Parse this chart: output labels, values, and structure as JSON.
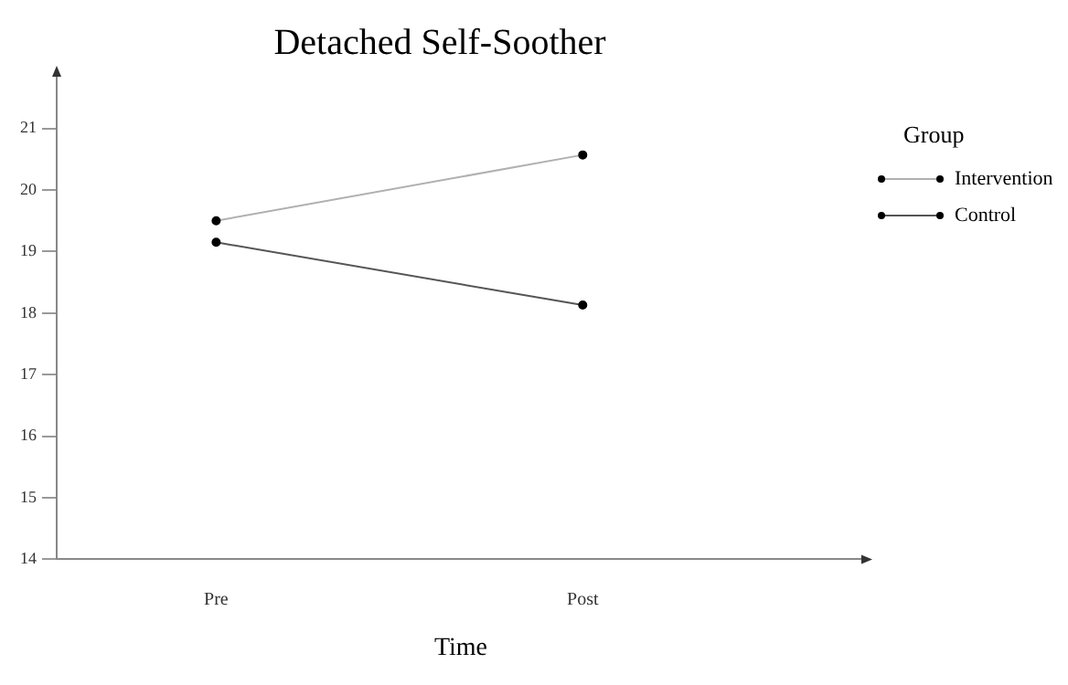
{
  "chart_data": {
    "type": "line",
    "title": "Detached Self-Soother",
    "xlabel": "Time",
    "legend_title": "Group",
    "categories": [
      "Pre",
      "Post"
    ],
    "series": [
      {
        "name": "Intervention",
        "color": "#b0b0b0",
        "values": [
          19.5,
          20.57
        ]
      },
      {
        "name": "Control",
        "color": "#555555",
        "values": [
          19.15,
          18.13
        ]
      }
    ],
    "ylim": [
      14,
      21.9
    ],
    "yticks": [
      14,
      15,
      16,
      17,
      18,
      19,
      20,
      21
    ],
    "grid": false,
    "legend": "right",
    "marker": "circle",
    "line_style": "solid"
  }
}
